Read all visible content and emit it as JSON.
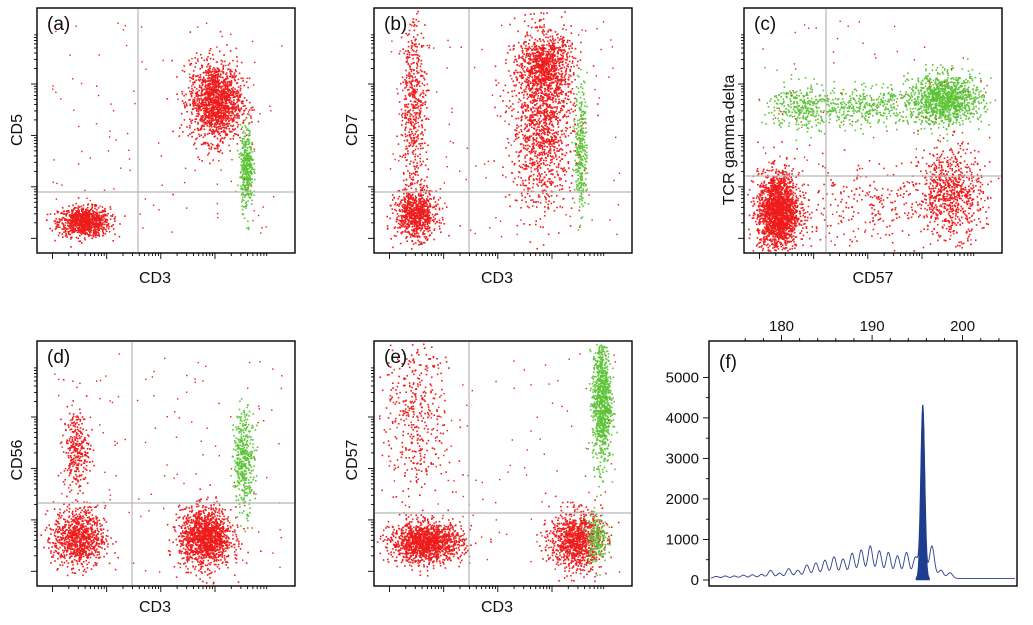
{
  "colors": {
    "red_population": "#ee1c1c",
    "green_population": "#5cc437",
    "gate_line": "#b8b8b8",
    "peak_fill": "#1f3d8f",
    "trace_line": "#2c3f8c"
  },
  "chart_data": [
    {
      "type": "scatter",
      "panel": "(a)",
      "xlabel": "CD3",
      "ylabel": "CD5",
      "scale": "log",
      "series": [
        {
          "color": "red",
          "clusters": [
            {
              "x": 0.18,
              "y": 0.13,
              "spread_x": 0.05,
              "spread_y": 0.03,
              "count": 900
            },
            {
              "x": 0.69,
              "y": 0.62,
              "spread_x": 0.05,
              "spread_y": 0.08,
              "count": 1500
            }
          ]
        },
        {
          "color": "green",
          "clusters": [
            {
              "x": 0.81,
              "y": 0.35,
              "spread_x": 0.012,
              "spread_y": 0.08,
              "count": 400
            }
          ]
        }
      ]
    },
    {
      "type": "scatter",
      "panel": "(b)",
      "xlabel": "CD3",
      "ylabel": "CD7",
      "scale": "log",
      "series": [
        {
          "color": "red",
          "clusters": [
            {
              "x": 0.16,
              "y": 0.16,
              "spread_x": 0.04,
              "spread_y": 0.05,
              "count": 800
            },
            {
              "x": 0.15,
              "y": 0.6,
              "spread_x": 0.025,
              "spread_y": 0.18,
              "count": 500
            },
            {
              "x": 0.65,
              "y": 0.55,
              "spread_x": 0.06,
              "spread_y": 0.18,
              "count": 1400
            },
            {
              "x": 0.66,
              "y": 0.77,
              "spread_x": 0.05,
              "spread_y": 0.06,
              "count": 700
            }
          ]
        },
        {
          "color": "green",
          "clusters": [
            {
              "x": 0.8,
              "y": 0.43,
              "spread_x": 0.012,
              "spread_y": 0.13,
              "count": 300
            }
          ]
        }
      ]
    },
    {
      "type": "scatter",
      "panel": "(c)",
      "xlabel": "CD57",
      "ylabel": "TCR gamma-delta",
      "scale": "log",
      "series": [
        {
          "color": "red",
          "clusters": [
            {
              "x": 0.13,
              "y": 0.17,
              "spread_x": 0.04,
              "spread_y": 0.08,
              "count": 1900
            },
            {
              "x": 0.8,
              "y": 0.25,
              "spread_x": 0.06,
              "spread_y": 0.09,
              "count": 700
            },
            {
              "x": 0.5,
              "y": 0.2,
              "spread_x": 0.2,
              "spread_y": 0.08,
              "count": 300
            }
          ]
        },
        {
          "color": "green",
          "clusters": [
            {
              "x": 0.78,
              "y": 0.63,
              "spread_x": 0.07,
              "spread_y": 0.05,
              "count": 1100
            },
            {
              "x": 0.22,
              "y": 0.6,
              "spread_x": 0.06,
              "spread_y": 0.05,
              "count": 300
            },
            {
              "x": 0.48,
              "y": 0.6,
              "spread_x": 0.13,
              "spread_y": 0.04,
              "count": 400
            }
          ]
        }
      ]
    },
    {
      "type": "scatter",
      "panel": "(d)",
      "xlabel": "CD3",
      "ylabel": "CD56",
      "scale": "log",
      "series": [
        {
          "color": "red",
          "clusters": [
            {
              "x": 0.16,
              "y": 0.2,
              "spread_x": 0.05,
              "spread_y": 0.06,
              "count": 900
            },
            {
              "x": 0.15,
              "y": 0.56,
              "spread_x": 0.025,
              "spread_y": 0.08,
              "count": 300
            },
            {
              "x": 0.65,
              "y": 0.2,
              "spread_x": 0.05,
              "spread_y": 0.06,
              "count": 1400
            }
          ]
        },
        {
          "color": "green",
          "clusters": [
            {
              "x": 0.8,
              "y": 0.52,
              "spread_x": 0.02,
              "spread_y": 0.1,
              "count": 400
            }
          ]
        }
      ]
    },
    {
      "type": "scatter",
      "panel": "(e)",
      "xlabel": "CD3",
      "ylabel": "CD57",
      "scale": "log",
      "series": [
        {
          "color": "red",
          "clusters": [
            {
              "x": 0.2,
              "y": 0.18,
              "spread_x": 0.07,
              "spread_y": 0.04,
              "count": 1400
            },
            {
              "x": 0.78,
              "y": 0.19,
              "spread_x": 0.05,
              "spread_y": 0.06,
              "count": 1000
            },
            {
              "x": 0.16,
              "y": 0.7,
              "spread_x": 0.06,
              "spread_y": 0.18,
              "count": 400
            }
          ]
        },
        {
          "color": "green",
          "clusters": [
            {
              "x": 0.88,
              "y": 0.76,
              "spread_x": 0.018,
              "spread_y": 0.13,
              "count": 900
            },
            {
              "x": 0.86,
              "y": 0.2,
              "spread_x": 0.02,
              "spread_y": 0.05,
              "count": 200
            }
          ]
        }
      ]
    },
    {
      "type": "line",
      "panel": "(f)",
      "x_ticks": [
        180,
        190,
        200
      ],
      "y_ticks": [
        0,
        1000,
        2000,
        3000,
        4000,
        5000
      ],
      "xlim": [
        172,
        206
      ],
      "ylim": [
        0,
        5700
      ],
      "peaks": [
        {
          "x": 172.8,
          "y": 50
        },
        {
          "x": 173.8,
          "y": 60
        },
        {
          "x": 174.8,
          "y": 60
        },
        {
          "x": 175.8,
          "y": 80
        },
        {
          "x": 176.8,
          "y": 90
        },
        {
          "x": 177.8,
          "y": 100
        },
        {
          "x": 178.8,
          "y": 200
        },
        {
          "x": 179.8,
          "y": 130
        },
        {
          "x": 180.8,
          "y": 240
        },
        {
          "x": 181.8,
          "y": 200
        },
        {
          "x": 182.8,
          "y": 330
        },
        {
          "x": 183.8,
          "y": 380
        },
        {
          "x": 184.8,
          "y": 450
        },
        {
          "x": 185.8,
          "y": 530
        },
        {
          "x": 186.8,
          "y": 480
        },
        {
          "x": 187.8,
          "y": 620
        },
        {
          "x": 188.8,
          "y": 700
        },
        {
          "x": 189.8,
          "y": 800
        },
        {
          "x": 190.8,
          "y": 680
        },
        {
          "x": 191.8,
          "y": 640
        },
        {
          "x": 192.8,
          "y": 560
        },
        {
          "x": 193.8,
          "y": 640
        },
        {
          "x": 194.8,
          "y": 530
        },
        {
          "x": 195.6,
          "y": 4280
        },
        {
          "x": 196.6,
          "y": 800
        },
        {
          "x": 197.6,
          "y": 200
        },
        {
          "x": 198.6,
          "y": 140
        }
      ],
      "highlight_peak": {
        "x": 195.6,
        "y": 4280
      }
    }
  ],
  "panels": {
    "a": {
      "label": "(a)",
      "xlabel": "CD3",
      "ylabel": "CD5"
    },
    "b": {
      "label": "(b)",
      "xlabel": "CD3",
      "ylabel": "CD7"
    },
    "c": {
      "label": "(c)",
      "xlabel": "CD57",
      "ylabel": "TCR gamma-delta"
    },
    "d": {
      "label": "(d)",
      "xlabel": "CD3",
      "ylabel": "CD56"
    },
    "e": {
      "label": "(e)",
      "xlabel": "CD3",
      "ylabel": "CD57"
    },
    "f": {
      "label": "(f)"
    }
  }
}
